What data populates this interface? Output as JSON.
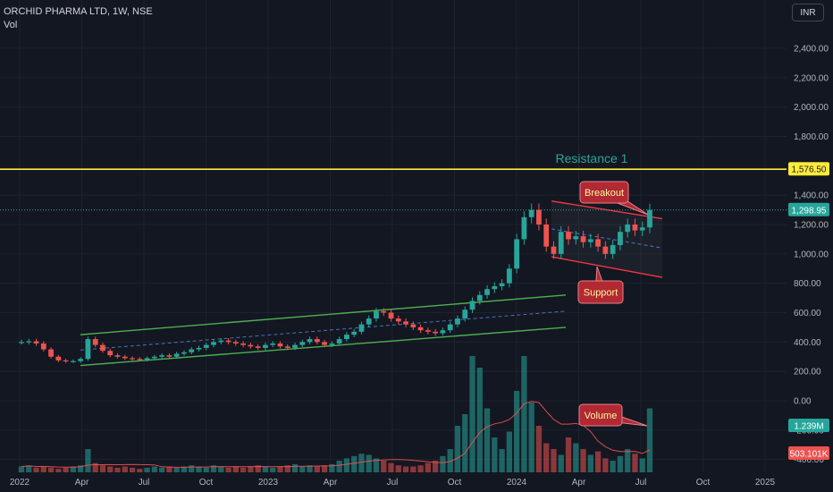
{
  "header": {
    "symbol": "ORCHID PHARMA LTD, 1W, NSE",
    "indicator": "Vol"
  },
  "currency": "INR",
  "colors": {
    "background": "#131722",
    "up": "#26a69a",
    "down": "#ef5350",
    "resistance": "#ffeb3b",
    "channel": "#4caf50",
    "wedge": "#f23645",
    "annotation_fill": "#b22833",
    "volume_ma": "#ef5350"
  },
  "chart_data": [
    {
      "type": "candlestick",
      "title": "ORCHID PHARMA LTD, 1W, NSE",
      "x_ticks": [
        "2022",
        "Apr",
        "Jul",
        "Oct",
        "2023",
        "Apr",
        "Jul",
        "Oct",
        "2024",
        "Apr",
        "Jul",
        "Oct",
        "2025"
      ],
      "y_ticks": [
        "2,400.00",
        "2,200.00",
        "2,000.00",
        "1,800.00",
        "1,400.00",
        "1,200.00",
        "1,000.00",
        "800.00",
        "600.00",
        "400.00",
        "200.00",
        "0.00",
        "-200.00",
        "-400.00"
      ],
      "ylim": [
        -400,
        2600
      ],
      "last_price": 1298.95,
      "last_price_label": "1,298.95",
      "approx_close_series": [
        400,
        405,
        390,
        350,
        300,
        275,
        270,
        270,
        285,
        420,
        380,
        340,
        310,
        300,
        290,
        285,
        280,
        290,
        300,
        310,
        300,
        320,
        330,
        350,
        360,
        380,
        400,
        410,
        400,
        390,
        380,
        370,
        360,
        380,
        390,
        370,
        360,
        380,
        400,
        420,
        400,
        380,
        390,
        420,
        450,
        470,
        520,
        560,
        610,
        600,
        560,
        540,
        520,
        500,
        480,
        470,
        460,
        480,
        520,
        560,
        620,
        680,
        720,
        760,
        780,
        800,
        900,
        1100,
        1250,
        1300,
        1200,
        1050,
        1000,
        1150,
        1100,
        1120,
        1080,
        1100,
        1050,
        1000,
        1060,
        1150,
        1200,
        1160,
        1180,
        1298.95
      ],
      "resistance": {
        "label": "Resistance 1",
        "value": 1576.5,
        "value_label": "1,576.50"
      },
      "channel": {
        "lower_start": 240,
        "lower_end": 500,
        "upper_start": 450,
        "upper_end": 720
      },
      "wedge": {
        "upper_start": 1360,
        "upper_end": 1240,
        "lower_start": 980,
        "lower_end": 840
      },
      "annotations": [
        {
          "label": "Breakout"
        },
        {
          "label": "Support"
        },
        {
          "label": "Volume"
        }
      ]
    },
    {
      "type": "bar",
      "name": "Vol",
      "last_volume_label": "1.239M",
      "volume_ma_label": "503.101K",
      "approx_relative_volume": [
        0.05,
        0.06,
        0.04,
        0.05,
        0.04,
        0.03,
        0.04,
        0.05,
        0.06,
        0.2,
        0.08,
        0.06,
        0.05,
        0.04,
        0.05,
        0.04,
        0.03,
        0.04,
        0.05,
        0.04,
        0.05,
        0.04,
        0.05,
        0.06,
        0.05,
        0.04,
        0.06,
        0.05,
        0.04,
        0.05,
        0.04,
        0.05,
        0.06,
        0.05,
        0.04,
        0.05,
        0.06,
        0.07,
        0.05,
        0.06,
        0.05,
        0.06,
        0.07,
        0.1,
        0.12,
        0.14,
        0.16,
        0.15,
        0.12,
        0.1,
        0.08,
        0.06,
        0.05,
        0.05,
        0.06,
        0.08,
        0.1,
        0.14,
        0.2,
        0.4,
        0.5,
        1.0,
        0.9,
        0.55,
        0.3,
        0.2,
        0.35,
        0.7,
        1.0,
        0.6,
        0.4,
        0.25,
        0.2,
        0.15,
        0.3,
        0.25,
        0.2,
        0.15,
        0.18,
        0.12,
        0.1,
        0.14,
        0.2,
        0.16,
        0.12,
        0.55
      ]
    }
  ]
}
